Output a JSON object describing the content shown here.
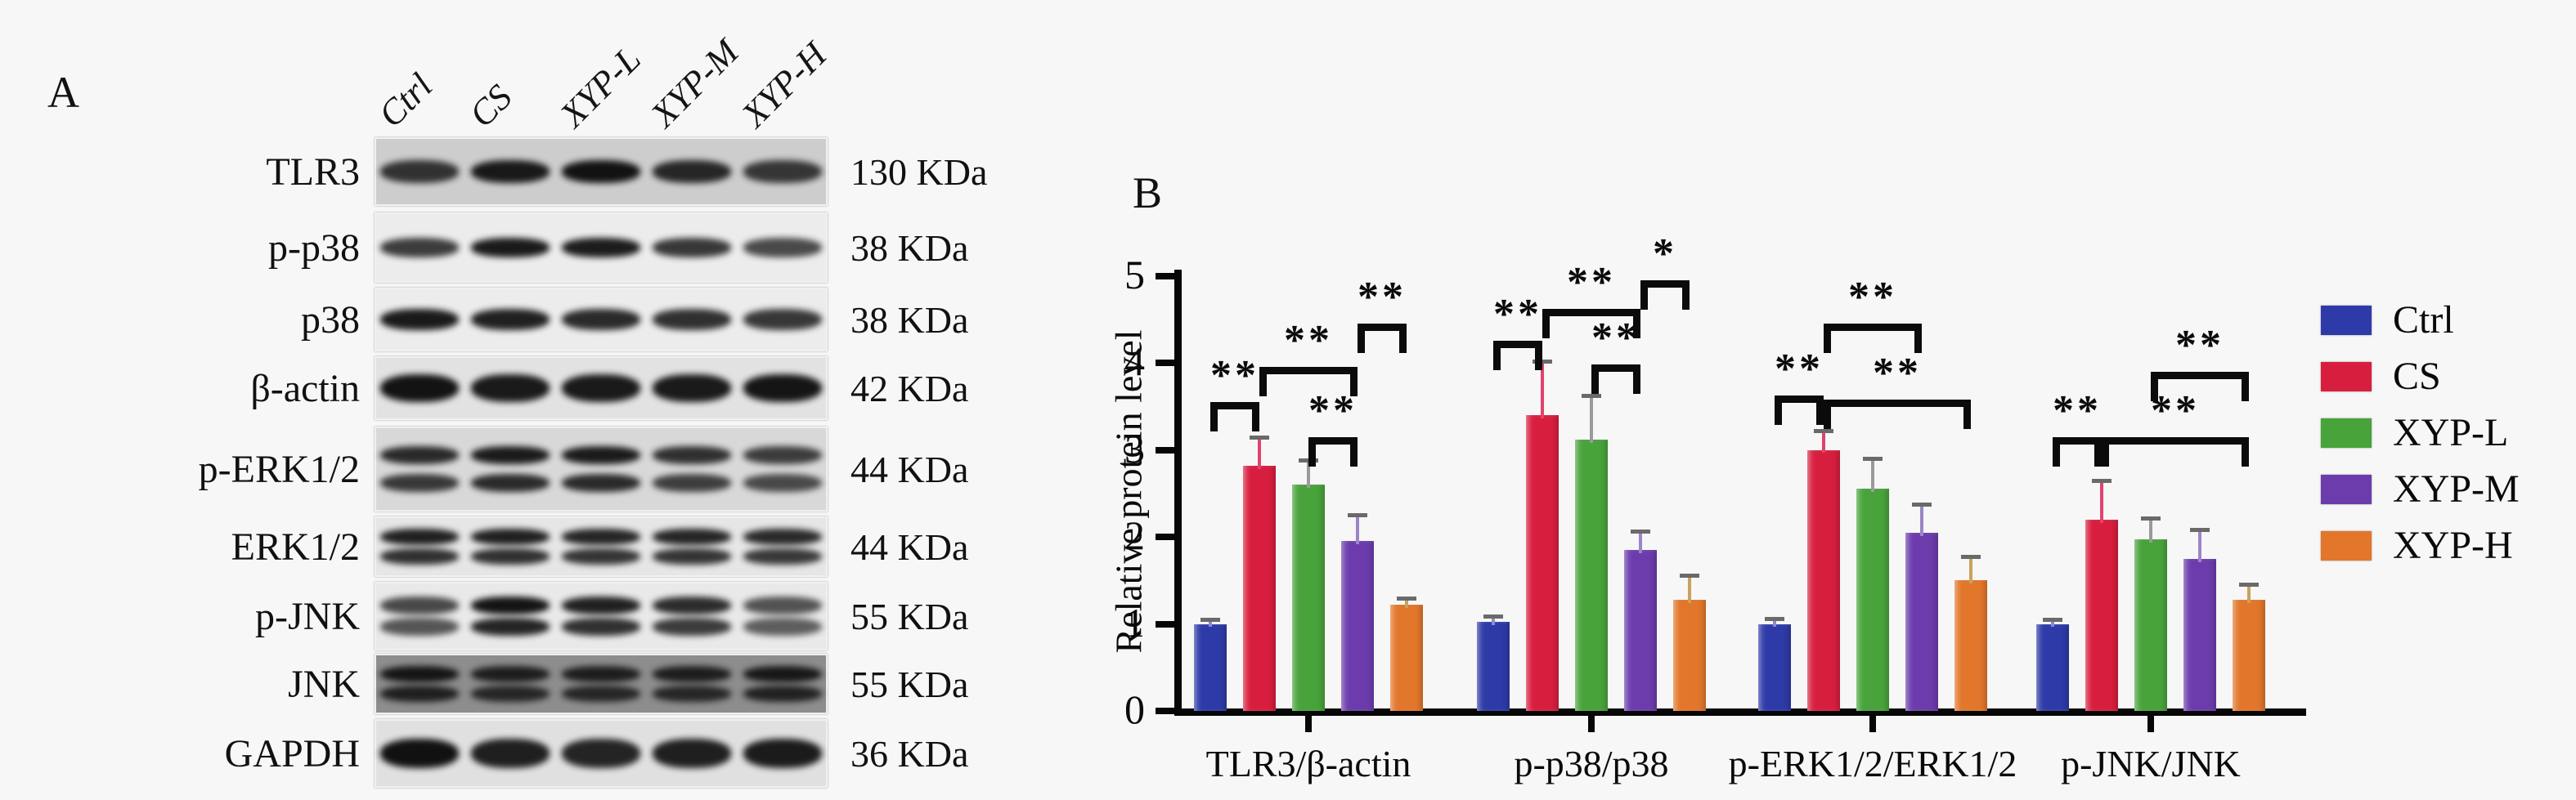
{
  "panel_a": {
    "label": "A",
    "lanes": [
      "Ctrl",
      "CS",
      "XYP-L",
      "XYP-M",
      "XYP-H"
    ],
    "rows": [
      {
        "protein": "TLR3",
        "kda": "130 KDa",
        "pattern": "single",
        "bg": "#cdcdcd",
        "intensities": [
          0.8,
          0.93,
          0.96,
          0.86,
          0.78
        ]
      },
      {
        "protein": "p-p38",
        "kda": "38 KDa",
        "pattern": "single",
        "bg": "#ececec",
        "intensities": [
          0.78,
          0.93,
          0.92,
          0.8,
          0.72
        ]
      },
      {
        "protein": "p38",
        "kda": "38 KDa",
        "pattern": "single",
        "bg": "#ececec",
        "intensities": [
          0.93,
          0.9,
          0.86,
          0.83,
          0.8
        ]
      },
      {
        "protein": "β-actin",
        "kda": "42 KDa",
        "pattern": "single",
        "bg": "#e2e2e2",
        "intensities": [
          0.96,
          0.93,
          0.93,
          0.93,
          0.95
        ]
      },
      {
        "protein": "p-ERK1/2",
        "kda": "44 KDa",
        "pattern": "double",
        "bg": "#d8d8d8",
        "intensities": [
          0.85,
          0.92,
          0.92,
          0.82,
          0.76
        ]
      },
      {
        "protein": "ERK1/2",
        "kda": "44 KDa",
        "pattern": "double",
        "bg": "#e6e6e6",
        "intensities": [
          0.9,
          0.9,
          0.88,
          0.88,
          0.86
        ]
      },
      {
        "protein": "p-JNK",
        "kda": "55 KDa",
        "pattern": "double",
        "bg": "#e9e9e9",
        "intensities": [
          0.72,
          0.96,
          0.9,
          0.85,
          0.68
        ]
      },
      {
        "protein": "JNK",
        "kda": "55 KDa",
        "pattern": "double",
        "bg": "#8d8d8d",
        "intensities": [
          0.92,
          0.86,
          0.86,
          0.86,
          0.9
        ]
      },
      {
        "protein": "GAPDH",
        "kda": "36 KDa",
        "pattern": "single",
        "bg": "#e0e0e0",
        "intensities": [
          0.97,
          0.9,
          0.88,
          0.9,
          0.92
        ]
      }
    ]
  },
  "panel_b": {
    "label": "B"
  },
  "chart_data": {
    "type": "bar",
    "title": "",
    "xlabel": "",
    "ylabel": "Relative protein level",
    "ylim": [
      0,
      5
    ],
    "yticks": [
      0,
      1,
      2,
      3,
      4,
      5
    ],
    "grid": false,
    "legend_position": "right",
    "categories": [
      "TLR3/β-actin",
      "p-p38/p38",
      "p-ERK1/2/ERK1/2",
      "p-JNK/JNK"
    ],
    "series": [
      {
        "name": "Ctrl",
        "color": "#2e3aa8",
        "error_color": "#8a8ccc",
        "values": [
          1.0,
          1.02,
          1.0,
          1.0
        ],
        "errors": [
          0.05,
          0.07,
          0.06,
          0.05
        ]
      },
      {
        "name": "CS",
        "color": "#d81e3f",
        "error_color": "#e0436e",
        "values": [
          2.82,
          3.4,
          3.0,
          2.2
        ],
        "errors": [
          0.33,
          0.62,
          0.22,
          0.45
        ]
      },
      {
        "name": "XYP-L",
        "color": "#48a33b",
        "error_color": "#9a9a9a",
        "values": [
          2.6,
          3.12,
          2.55,
          1.97
        ],
        "errors": [
          0.28,
          0.5,
          0.35,
          0.25
        ]
      },
      {
        "name": "XYP-M",
        "color": "#6c3cac",
        "error_color": "#9b85c9",
        "values": [
          1.95,
          1.85,
          2.05,
          1.75
        ],
        "errors": [
          0.3,
          0.22,
          0.33,
          0.33
        ]
      },
      {
        "name": "XYP-H",
        "color": "#e2762b",
        "error_color": "#c9a25a",
        "values": [
          1.22,
          1.28,
          1.5,
          1.28
        ],
        "errors": [
          0.08,
          0.28,
          0.27,
          0.18
        ]
      }
    ],
    "significance": [
      {
        "group": 0,
        "from": 0,
        "to": 1,
        "label": "**",
        "y": 3.55
      },
      {
        "group": 0,
        "from": 1,
        "to": 3,
        "label": "**",
        "y": 3.95
      },
      {
        "group": 0,
        "from": 2,
        "to": 3,
        "label": "**",
        "y": 3.15
      },
      {
        "group": 0,
        "from": 3,
        "to": 4,
        "label": "**",
        "y": 4.45
      },
      {
        "group": 1,
        "from": 0,
        "to": 1,
        "label": "**",
        "y": 4.25
      },
      {
        "group": 1,
        "from": 1,
        "to": 3,
        "label": "**",
        "y": 4.62
      },
      {
        "group": 1,
        "from": 2,
        "to": 3,
        "label": "**",
        "y": 3.98
      },
      {
        "group": 1,
        "from": 3,
        "to": 4,
        "label": "*",
        "y": 4.95
      },
      {
        "group": 2,
        "from": 0,
        "to": 1,
        "label": "**",
        "y": 3.62
      },
      {
        "group": 2,
        "from": 1,
        "to": 4,
        "label": "**",
        "y": 3.58
      },
      {
        "group": 2,
        "from": 1,
        "to": 3,
        "label": "**",
        "y": 4.45
      },
      {
        "group": 3,
        "from": 0,
        "to": 1,
        "label": "**",
        "y": 3.15
      },
      {
        "group": 3,
        "from": 1,
        "to": 4,
        "label": "**",
        "y": 3.15
      },
      {
        "group": 3,
        "from": 2,
        "to": 4,
        "label": "**",
        "y": 3.9
      }
    ]
  }
}
